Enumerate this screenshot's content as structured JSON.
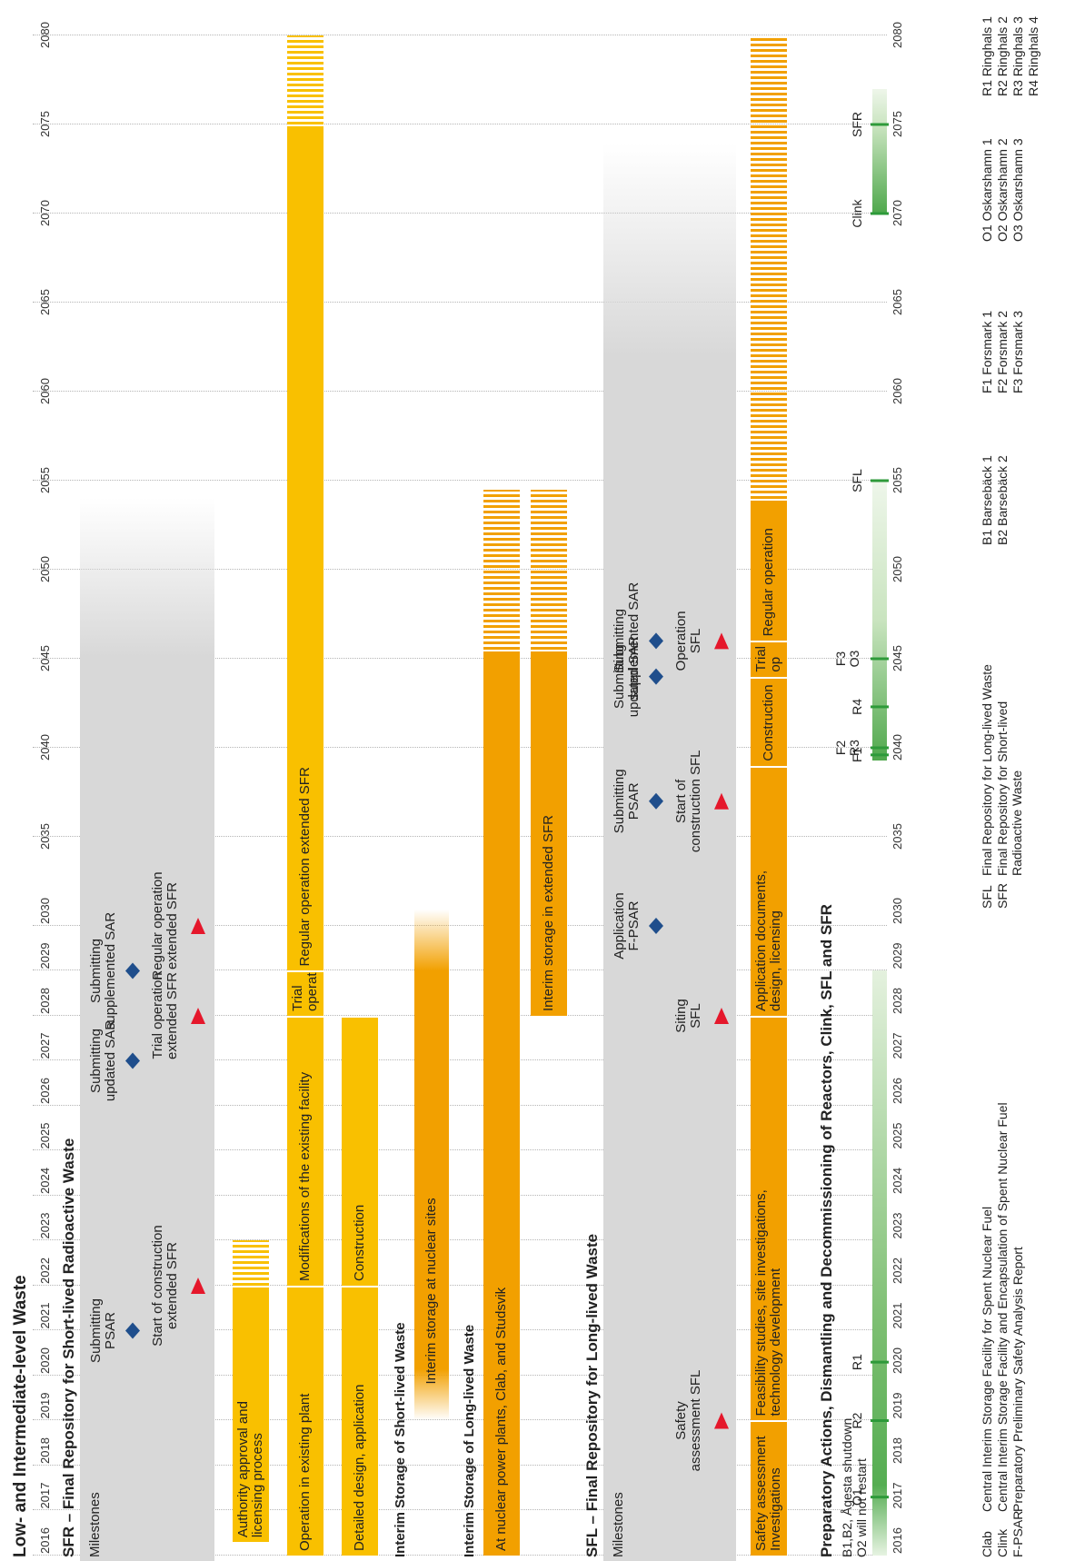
{
  "title": "Low- and Intermediate-level Waste",
  "years_labelled": [
    "2016",
    "2017",
    "2018",
    "2019",
    "2020",
    "2021",
    "2022",
    "2023",
    "2024",
    "2025",
    "2026",
    "2027",
    "2028",
    "2029",
    "2030"
  ],
  "years_sparse": [
    "2035",
    "2040",
    "2045",
    "2050",
    "2055",
    "2060",
    "2065",
    "2070",
    "2075",
    "2080"
  ],
  "sfr": {
    "title": "SFR – Final Repository for Short-lived Radioactive Waste",
    "milestones_label": "Milestones",
    "milestones": [
      {
        "type": "diamond",
        "year": 2021.0,
        "text": "Submitting\nPSAR",
        "row": "upper"
      },
      {
        "type": "triangle",
        "year": 2022.0,
        "text": "Start of construction\nextended SFR",
        "row": "lower"
      },
      {
        "type": "diamond",
        "year": 2027.0,
        "text": "Submitting\nupdated SAR",
        "row": "upper"
      },
      {
        "type": "triangle",
        "year": 2028.0,
        "text": "Trial operation\nextended SFR",
        "row": "lower"
      },
      {
        "type": "diamond",
        "year": 2029.0,
        "text": "Submitting\nsupplemented SAR",
        "row": "upper"
      },
      {
        "type": "triangle",
        "year": 2030.0,
        "text": "Regular operation\nextended SFR",
        "row": "lower"
      }
    ],
    "bars": [
      {
        "text": "Authority approval and\nlicensing process",
        "start": 2016.3,
        "end": 2022.0,
        "fade_end": 2023.0,
        "row": 1,
        "color": "#f9c000"
      },
      {
        "text": "Operation in existing plant",
        "start": 2016.0,
        "end": 2022.0,
        "row": 2,
        "color": "#f9c000"
      },
      {
        "text": "Modifications of the existing facility",
        "start": 2022.0,
        "end": 2028.0,
        "row": 2,
        "color": "#f9c000"
      },
      {
        "text": "Trial\noperation",
        "start": 2028.0,
        "end": 2029.0,
        "row": 2,
        "color": "#f9c000"
      },
      {
        "text": "Regular operation extended SFR",
        "start": 2029.0,
        "end": 2075.0,
        "fade_end": 2080.0,
        "row": 2,
        "color": "#f9c000"
      },
      {
        "text": "Detailed design, application",
        "start": 2016.0,
        "end": 2022.0,
        "row": 3,
        "color": "#f9c000"
      },
      {
        "text": "Construction",
        "start": 2022.0,
        "end": 2028.0,
        "row": 3,
        "color": "#f9c000"
      }
    ]
  },
  "interim_short": {
    "title": "Interim Storage of Short-lived Waste",
    "bar": {
      "text": "Interim storage at nuclear sites",
      "start": 2019.0,
      "end": 2031.0
    }
  },
  "interim_long": {
    "title": "Interim Storage of Long-lived Waste",
    "bars": [
      {
        "text": "At nuclear power plants, Clab, and Studsvik",
        "start": 2016.0,
        "end": 2045.5,
        "fade_end": 2054.5,
        "row": 1
      },
      {
        "text": "Interim storage in extended SFR",
        "start": 2028.0,
        "end": 2045.5,
        "fade_end": 2054.5,
        "row": 2
      }
    ]
  },
  "sfl": {
    "title": "SFL – Final Repository for Long-lived Waste",
    "milestones_label": "Milestones",
    "milestones": [
      {
        "type": "triangle",
        "year": 2019.0,
        "text": "Safety\nassessment SFL",
        "row": "lower"
      },
      {
        "type": "triangle",
        "year": 2028.0,
        "text": "Siting\nSFL",
        "row": "lower"
      },
      {
        "type": "diamond",
        "year": 2030.0,
        "text": "Application\nF-PSAR",
        "row": "upper"
      },
      {
        "type": "diamond",
        "year": 2037.0,
        "text": "Submitting\nPSAR",
        "row": "upper"
      },
      {
        "type": "triangle",
        "year": 2037.0,
        "text": "Start of\nconstruction SFL",
        "row": "lower"
      },
      {
        "type": "diamond",
        "year": 2044.0,
        "text": "Submitting\nupdated SAR",
        "row": "upper"
      },
      {
        "type": "triangle",
        "year": 2046.0,
        "text": "Operation\nSFL",
        "row": "lower"
      },
      {
        "type": "diamond",
        "year": 2046.0,
        "text": "Submitting\nsupplemented SAR",
        "row": "upper"
      }
    ],
    "bars": [
      {
        "text": "Safety assessment\nInvestigations",
        "start": 2016.0,
        "end": 2019.0
      },
      {
        "text": "Feasibility studies, site investigations,\ntechnology development",
        "start": 2019.0,
        "end": 2028.0
      },
      {
        "text": "Application documents,\ndesign, licensing",
        "start": 2028.0,
        "end": 2039.0
      },
      {
        "text": "Construction",
        "start": 2039.0,
        "end": 2044.0
      },
      {
        "text": "Trial\nop",
        "start": 2044.0,
        "end": 2046.0
      },
      {
        "text": "Regular operation",
        "start": 2046.0,
        "end": 2054.0,
        "fade_end": 2080.0
      }
    ]
  },
  "prep": {
    "title": "Preparatory Actions, Dismantling and Decommissioning of Reactors, Clink, SFL and SFR",
    "note": "B1,B2, Ågesta shutdown\nO2 will not restart",
    "events": [
      {
        "year": 2017.3,
        "text": "O1"
      },
      {
        "year": 2019.0,
        "text": "R2"
      },
      {
        "year": 2020.3,
        "text": "R1"
      },
      {
        "year": 2039.6,
        "text": "F1"
      },
      {
        "year": 2040.0,
        "text": "F2\nR3"
      },
      {
        "year": 2042.3,
        "text": "R4"
      },
      {
        "year": 2045.0,
        "text": "F3\nO3"
      },
      {
        "year": 2055.0,
        "text": "SFL"
      },
      {
        "year": 2070.0,
        "text": "Clink"
      },
      {
        "year": 2075.0,
        "text": "SFR"
      }
    ]
  },
  "legend": {
    "col1": [
      {
        "abbr": "Clab",
        "text": "Central Interim Storage Facility for Spent Nuclear Fuel"
      },
      {
        "abbr": "Clink",
        "text": "Central Interim Storage Facility and Encapsulation of Spent Nuclear Fuel"
      },
      {
        "abbr": "F-PSAR",
        "text": "Preparatory Preliminary Safety Analysis Report"
      }
    ],
    "col2": [
      {
        "abbr": "SFL",
        "text": "Final Repository for Long-lived Waste"
      },
      {
        "abbr": "SFR",
        "text": "Final Repository for Short-lived\nRadioactive Waste"
      }
    ],
    "col3": [
      "B1 Barsebäck 1",
      "B2 Barsebäck 2"
    ],
    "col4": [
      "F1 Forsmark 1",
      "F2 Forsmark 2",
      "F3 Forsmark 3"
    ],
    "col5": [
      "O1 Oskarshamn 1",
      "O2 Oskarshamn 2",
      "O3 Oskarshamn 3"
    ],
    "col6": [
      "R1 Ringhals 1",
      "R2 Ringhals 2",
      "R3 Ringhals 3",
      "R4 Ringhals 4"
    ]
  },
  "colors": {
    "sfr_bar": "#f9c000",
    "orange_bar": "#f2a000",
    "diamond": "#1f4e8c",
    "triangle": "#e5172b",
    "green": "#2e9a3a"
  }
}
